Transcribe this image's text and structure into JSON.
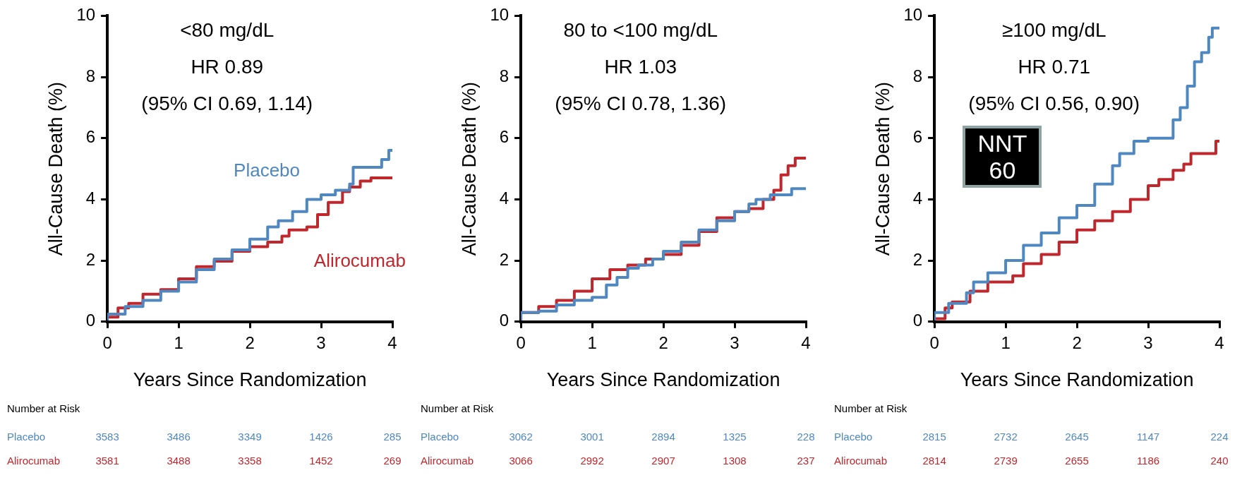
{
  "chart_data": [
    {
      "type": "step",
      "title": "<80 mg/dL",
      "subtitle": "HR 0.89",
      "xlabel": "Years Since Randomization",
      "ylabel": "All-Cause Death (%)",
      "xlim": [
        0,
        4
      ],
      "xticks": [
        0,
        1,
        2,
        3,
        4
      ],
      "ylim": [
        0,
        10
      ],
      "yticks": [
        0,
        2,
        4,
        6,
        8,
        10
      ],
      "grid": false,
      "legend": false,
      "annotations": [
        "(95% CI 0.69, 1.14)",
        "Number at Risk",
        "Placebo",
        "3583",
        "3486",
        "3349",
        "1426",
        "285",
        "Alirocumab",
        "3581",
        "3488",
        "3358",
        "1452",
        "269"
      ],
      "series": [
        {
          "name": "Placebo",
          "color": "#4f88c0",
          "x": [
            0,
            0.25,
            0.5,
            0.75,
            1,
            1.25,
            1.5,
            1.75,
            2,
            2.25,
            2.4,
            2.6,
            2.8,
            3,
            3.2,
            3.4,
            3.45,
            3.5,
            3.85,
            3.88,
            3.95,
            3.97,
            4
          ],
          "values": [
            0.05,
            0.25,
            0.5,
            0.7,
            1,
            1.3,
            1.7,
            2.05,
            2.35,
            2.7,
            3.1,
            3.3,
            3.6,
            4,
            4.15,
            4.3,
            4.5,
            5.05,
            5.05,
            5.3,
            5.3,
            5.6,
            5.6
          ]
        },
        {
          "name": "Alirocumab",
          "color": "#c0272d",
          "x": [
            0,
            0.15,
            0.3,
            0.5,
            0.75,
            1,
            1.25,
            1.5,
            1.75,
            2,
            2.25,
            2.45,
            2.55,
            2.8,
            2.95,
            3.1,
            3.3,
            3.4,
            3.55,
            3.7,
            3.8,
            4
          ],
          "values": [
            0.05,
            0.15,
            0.45,
            0.6,
            0.9,
            1.05,
            1.4,
            1.8,
            1.98,
            2.3,
            2.45,
            2.6,
            2.8,
            3,
            3.1,
            3.5,
            3.9,
            4.25,
            4.4,
            4.6,
            4.7,
            4.7
          ]
        }
      ]
    },
    {
      "type": "step",
      "title": "80 to <100 mg/dL",
      "subtitle": "HR 1.03",
      "xlabel": "Years Since Randomization",
      "ylabel": "All-Cause Death (%)",
      "xlim": [
        0,
        4
      ],
      "xticks": [
        0,
        1,
        2,
        3,
        4
      ],
      "ylim": [
        0,
        10
      ],
      "yticks": [
        0,
        2,
        4,
        6,
        8,
        10
      ],
      "grid": false,
      "legend": false,
      "annotations": [
        "(95% CI 0.78, 1.36)",
        "Number at Risk",
        "Placebo",
        "3062",
        "3001",
        "2894",
        "1325",
        "228",
        "Alirocumab",
        "3066",
        "2992",
        "2907",
        "1308",
        "237"
      ],
      "series": [
        {
          "color": "#4f88c0",
          "x": [
            0,
            0.25,
            0.5,
            0.75,
            1,
            1.2,
            1.35,
            1.5,
            1.65,
            1.85,
            2,
            2.25,
            2.5,
            2.75,
            3,
            3.2,
            3.3,
            3.5,
            3.6,
            3.8,
            3.85,
            4
          ],
          "values": [
            0.05,
            0.3,
            0.35,
            0.55,
            0.7,
            0.8,
            1.2,
            1.45,
            1.75,
            1.85,
            2.05,
            2.3,
            2.6,
            3,
            3.3,
            3.6,
            3.85,
            4,
            4.15,
            4.15,
            4.35,
            4.35
          ]
        },
        {
          "color": "#c0272d",
          "x": [
            0,
            0.25,
            0.5,
            0.75,
            1,
            1.25,
            1.5,
            1.75,
            2,
            2.25,
            2.5,
            2.75,
            3,
            3.2,
            3.4,
            3.55,
            3.65,
            3.75,
            3.85,
            3.9,
            4
          ],
          "values": [
            0.05,
            0.3,
            0.5,
            0.7,
            1,
            1.4,
            1.7,
            1.85,
            2.05,
            2.2,
            2.5,
            2.95,
            3.4,
            3.6,
            3.7,
            4,
            4.3,
            4.8,
            5.1,
            5.35,
            5.35
          ]
        }
      ]
    },
    {
      "type": "step",
      "title": "≥100 mg/dL",
      "subtitle": "HR 0.71",
      "xlabel": "Years Since Randomization",
      "ylabel": "All-Cause Death (%)",
      "xlim": [
        0,
        4
      ],
      "xticks": [
        0,
        1,
        2,
        3,
        4
      ],
      "ylim": [
        0,
        10
      ],
      "yticks": [
        0,
        2,
        4,
        6,
        8,
        10
      ],
      "grid": false,
      "legend": false,
      "annotations": [
        "(95% CI 0.56, 0.90)",
        "Number at Risk",
        "Placebo",
        "2815",
        "2732",
        "2645",
        "1147",
        "224",
        "Alirocumab",
        "2814",
        "2739",
        "2655",
        "1186",
        "240",
        "NNT 60"
      ],
      "series": [
        {
          "color": "#4f88c0",
          "x": [
            0,
            0.2,
            0.45,
            0.55,
            0.75,
            1,
            1.25,
            1.5,
            1.75,
            2,
            2.25,
            2.5,
            2.6,
            2.8,
            3,
            3.05,
            3.35,
            3.45,
            3.55,
            3.65,
            3.75,
            3.85,
            3.9,
            4
          ],
          "values": [
            0.05,
            0.3,
            0.6,
            0.95,
            1.3,
            1.6,
            2,
            2.5,
            2.9,
            3.4,
            3.8,
            4.5,
            5.1,
            5.5,
            5.9,
            6,
            6,
            6.6,
            7,
            7.7,
            8.5,
            8.8,
            9.3,
            9.6
          ]
        },
        {
          "color": "#c0272d",
          "x": [
            0,
            0.15,
            0.25,
            0.5,
            0.75,
            0.9,
            1.1,
            1.25,
            1.5,
            1.75,
            2,
            2.25,
            2.5,
            2.75,
            3,
            3.15,
            3.35,
            3.5,
            3.6,
            3.7,
            3.95,
            4
          ],
          "values": [
            0.05,
            0.1,
            0.45,
            0.65,
            1,
            1.3,
            1.3,
            1.5,
            1.9,
            2.2,
            2.6,
            3,
            3.3,
            3.6,
            4,
            4.45,
            4.65,
            4.95,
            5.15,
            5.5,
            5.5,
            5.9
          ]
        }
      ]
    }
  ]
}
